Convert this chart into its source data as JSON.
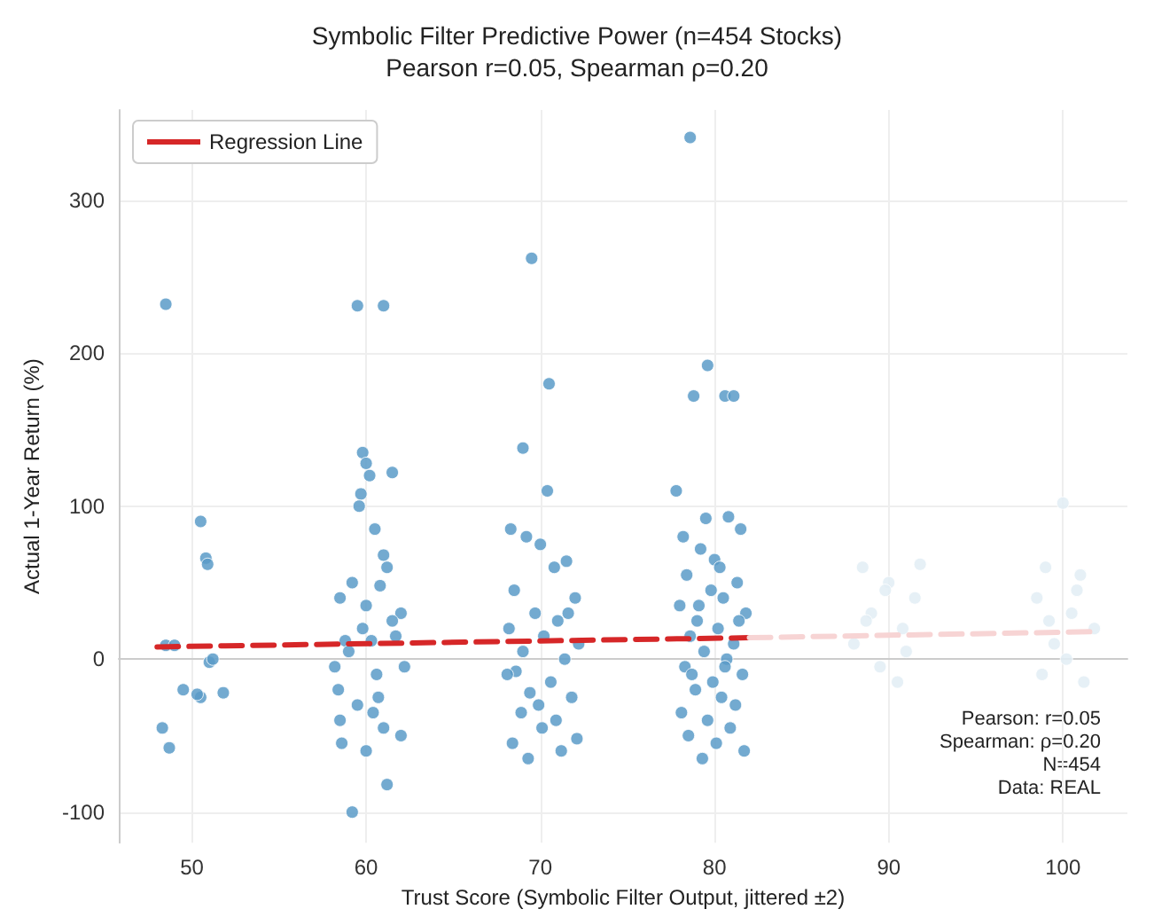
{
  "chart_data": {
    "type": "scatter",
    "title": "Symbolic Filter Predictive Power (n=454 Stocks)",
    "subtitle": "Pearson r=0.05, Spearman ρ=0.20",
    "xlabel": "Trust Score (Symbolic Filter Output, jittered ±2)",
    "ylabel": "Actual 1-Year Return (%)",
    "xlim": [
      45.8,
      103.7
    ],
    "xticks": [
      50,
      60,
      70,
      80,
      90,
      100
    ],
    "ylim": [
      -120,
      359
    ],
    "yticks": [
      -100,
      0,
      100,
      200,
      300
    ],
    "grid": true,
    "legend": "top left",
    "marker": "circle",
    "annotations": [
      "Pearson: r=0.05",
      "Spearman: ρ=0.20",
      "N=454",
      "Data: REAL"
    ],
    "series": [
      {
        "color": "#5b9bc8",
        "x": [
          48.5,
          48.5,
          49,
          48.3,
          48.7,
          50.5,
          50.8,
          50.9,
          51,
          50.5,
          49.5,
          51.8,
          51.2,
          50.3,
          59.5,
          61,
          59.8,
          60,
          60.2,
          61.5,
          59.7,
          59.6,
          60.5,
          61,
          61.2,
          59.2,
          60.8,
          58.5,
          60,
          62,
          61.5,
          58.8,
          60.3,
          59,
          62.2,
          58.4,
          60.6,
          59.5,
          58.5,
          61,
          58.6,
          60,
          59.2,
          61.2,
          62,
          60.7,
          59.8,
          58.2,
          61.7,
          60.4,
          69.5,
          70.5,
          69,
          70.4,
          68.3,
          69.2,
          70,
          71.5,
          70.8,
          68.5,
          72,
          69.7,
          71,
          68.2,
          70.2,
          72.2,
          69,
          71.4,
          68.6,
          70.6,
          69.4,
          71.8,
          68.9,
          70.1,
          72.1,
          68.4,
          69.3,
          71.2,
          70.9,
          68.1,
          71.6,
          69.9,
          78.6,
          79.6,
          78.8,
          80.6,
          81.1,
          77.8,
          79.5,
          80.8,
          78.2,
          81.5,
          79.2,
          80,
          78.4,
          81.3,
          79.8,
          80.5,
          78,
          81.8,
          79,
          80.2,
          78.6,
          81.1,
          79.4,
          80.7,
          78.3,
          81.6,
          79.9,
          78.9,
          80.4,
          81.2,
          78.1,
          79.6,
          80.9,
          78.5,
          80.1,
          81.7,
          79.3,
          80.6,
          79.1,
          81.4,
          78.7,
          80.3
        ],
        "values": [
          232,
          9,
          9,
          -45,
          -58,
          90,
          66,
          62,
          -2,
          -25,
          -20,
          -22,
          0,
          -23,
          231,
          231,
          135,
          128,
          120,
          122,
          108,
          100,
          85,
          68,
          60,
          50,
          48,
          40,
          35,
          30,
          25,
          12,
          12,
          5,
          -5,
          -20,
          -10,
          -30,
          -40,
          -45,
          -55,
          -60,
          -100,
          -82,
          -50,
          -25,
          20,
          -5,
          15,
          -35,
          262,
          180,
          138,
          110,
          85,
          80,
          75,
          64,
          60,
          45,
          40,
          30,
          25,
          20,
          15,
          10,
          5,
          0,
          -8,
          -15,
          -22,
          -25,
          -35,
          -45,
          -52,
          -55,
          -65,
          -60,
          -40,
          -10,
          30,
          -30,
          341,
          192,
          172,
          172,
          172,
          110,
          92,
          93,
          80,
          85,
          72,
          65,
          55,
          50,
          45,
          40,
          35,
          30,
          25,
          20,
          15,
          10,
          5,
          0,
          -5,
          -10,
          -15,
          -20,
          -25,
          -30,
          -35,
          -40,
          -45,
          -50,
          -55,
          -60,
          -65,
          -5,
          35,
          25,
          -10,
          60
        ]
      },
      {
        "color": "#e2edf5",
        "x": [
          88.5,
          90,
          91.5,
          89,
          90.8,
          88,
          91,
          89.5,
          90.5,
          88.7,
          91.8,
          89.8,
          100,
          99,
          101,
          98.5,
          100.5,
          101.8,
          99.5,
          100.2,
          98.8,
          101.2,
          100.8,
          99.2
        ],
        "values": [
          60,
          50,
          40,
          30,
          20,
          10,
          5,
          -5,
          -15,
          25,
          62,
          45,
          102,
          60,
          55,
          40,
          30,
          20,
          10,
          0,
          -10,
          -15,
          45,
          25
        ]
      },
      {
        "type": "line",
        "name": "Regression Line",
        "color": "#d62728",
        "line_style": "dashed",
        "marker": "none",
        "x": [
          48,
          82
        ],
        "values": [
          8,
          14
        ]
      },
      {
        "type": "line",
        "color": "#f7d4d4",
        "line_style": "dashed",
        "marker": "none",
        "x": [
          82,
          102
        ],
        "values": [
          14,
          18
        ]
      }
    ]
  }
}
